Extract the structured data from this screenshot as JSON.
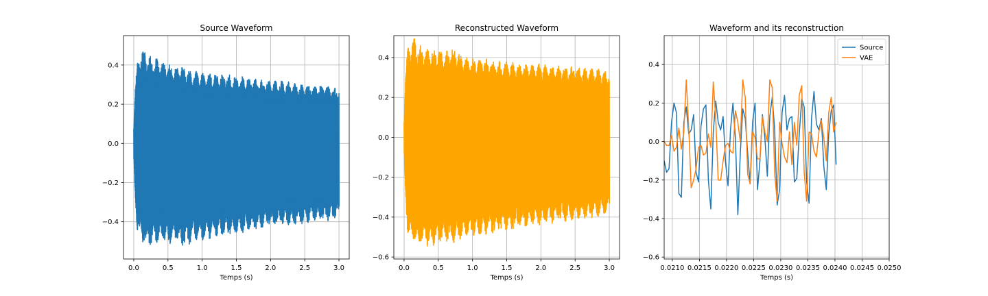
{
  "chart_data": [
    {
      "type": "line",
      "title": "Source Waveform",
      "xlabel": "Temps (s)",
      "ylabel": "",
      "xlim": [
        -0.15,
        3.15
      ],
      "ylim": [
        -0.59,
        0.55
      ],
      "xticks": [
        0.0,
        0.5,
        1.0,
        1.5,
        2.0,
        2.5,
        3.0
      ],
      "xtick_labels": [
        "0.0",
        "0.5",
        "1.0",
        "1.5",
        "2.0",
        "2.5",
        "3.0"
      ],
      "yticks": [
        -0.4,
        -0.2,
        0.0,
        0.2,
        0.4
      ],
      "ytick_labels": [
        "−0.4",
        "−0.2",
        "0.0",
        "0.2",
        "0.4"
      ],
      "grid": true,
      "legend": null,
      "series": [
        {
          "color": "#1f77b4",
          "envelope": {
            "t": [
              0.0,
              0.02,
              0.05,
              0.1,
              0.15,
              0.2,
              0.3,
              0.4,
              0.5,
              0.6,
              0.7,
              0.8,
              0.9,
              1.0,
              1.2,
              1.4,
              1.6,
              1.8,
              2.0,
              2.2,
              2.4,
              2.6,
              2.8,
              3.0
            ],
            "max": [
              0.1,
              0.28,
              0.42,
              0.47,
              0.49,
              0.45,
              0.44,
              0.42,
              0.41,
              0.39,
              0.4,
              0.38,
              0.37,
              0.36,
              0.36,
              0.35,
              0.34,
              0.33,
              0.32,
              0.32,
              0.31,
              0.3,
              0.3,
              0.28
            ],
            "min": [
              -0.1,
              -0.3,
              -0.46,
              -0.5,
              -0.52,
              -0.53,
              -0.51,
              -0.5,
              -0.52,
              -0.5,
              -0.53,
              -0.52,
              -0.49,
              -0.5,
              -0.48,
              -0.47,
              -0.46,
              -0.44,
              -0.43,
              -0.42,
              -0.42,
              -0.4,
              -0.4,
              -0.38
            ]
          }
        }
      ]
    },
    {
      "type": "line",
      "title": "Reconstructed Waveform",
      "xlabel": "Temps (s)",
      "ylabel": "",
      "xlim": [
        -0.15,
        3.15
      ],
      "ylim": [
        -0.61,
        0.51
      ],
      "xticks": [
        0.0,
        0.5,
        1.0,
        1.5,
        2.0,
        2.5,
        3.0
      ],
      "xtick_labels": [
        "0.0",
        "0.5",
        "1.0",
        "1.5",
        "2.0",
        "2.5",
        "3.0"
      ],
      "yticks": [
        -0.6,
        -0.4,
        -0.2,
        0.0,
        0.2,
        0.4
      ],
      "ytick_labels": [
        "−0.6",
        "−0.4",
        "−0.2",
        "0.0",
        "0.2",
        "0.4"
      ],
      "grid": true,
      "legend": null,
      "series": [
        {
          "color": "#ffa500",
          "envelope": {
            "t": [
              0.0,
              0.02,
              0.05,
              0.1,
              0.15,
              0.2,
              0.3,
              0.4,
              0.5,
              0.6,
              0.7,
              0.8,
              0.9,
              1.0,
              1.2,
              1.4,
              1.6,
              1.8,
              2.0,
              2.2,
              2.4,
              2.6,
              2.8,
              3.0
            ],
            "max": [
              0.1,
              0.3,
              0.45,
              0.48,
              0.5,
              0.47,
              0.45,
              0.44,
              0.44,
              0.43,
              0.46,
              0.43,
              0.4,
              0.4,
              0.4,
              0.38,
              0.38,
              0.37,
              0.37,
              0.36,
              0.36,
              0.35,
              0.35,
              0.33
            ],
            "min": [
              -0.1,
              -0.32,
              -0.48,
              -0.52,
              -0.53,
              -0.55,
              -0.55,
              -0.55,
              -0.54,
              -0.52,
              -0.54,
              -0.52,
              -0.51,
              -0.5,
              -0.49,
              -0.48,
              -0.47,
              -0.45,
              -0.44,
              -0.43,
              -0.42,
              -0.41,
              -0.4,
              -0.38
            ]
          }
        }
      ]
    },
    {
      "type": "line",
      "title": "Waveform and its reconstruction",
      "xlabel": "Temps (s)",
      "ylabel": "",
      "xlim": [
        0.02085,
        0.025
      ],
      "ylim": [
        -0.61,
        0.55
      ],
      "xticks": [
        0.021,
        0.0215,
        0.022,
        0.0225,
        0.023,
        0.0235,
        0.024,
        0.0245,
        0.025
      ],
      "xtick_labels": [
        "0.0210",
        "0.0215",
        "0.0220",
        "0.0225",
        "0.0230",
        "0.0235",
        "0.0240",
        "0.0245",
        "0.0250"
      ],
      "yticks": [
        -0.6,
        -0.4,
        -0.2,
        0.0,
        0.2,
        0.4
      ],
      "ytick_labels": [
        "−0.6",
        "−0.4",
        "−0.2",
        "0.0",
        "0.2",
        "0.4"
      ],
      "grid": true,
      "legend": {
        "position": "upper-right",
        "entries": [
          "Source",
          "VAE"
        ]
      },
      "x_start": 0.02085,
      "x_step": 4.53e-05,
      "series": [
        {
          "name": "Source",
          "color": "#1f77b4",
          "values": [
            -0.1,
            -0.16,
            -0.14,
            0.1,
            0.2,
            0.15,
            -0.27,
            -0.29,
            0.1,
            0.18,
            0.04,
            0.06,
            0.14,
            -0.16,
            -0.21,
            0.08,
            0.17,
            0.19,
            -0.2,
            -0.35,
            0.05,
            0.21,
            0.1,
            0.06,
            0.13,
            -0.11,
            -0.23,
            0.06,
            0.2,
            0.02,
            -0.38,
            -0.06,
            0.17,
            0.12,
            -0.06,
            -0.22,
            0.1,
            0.2,
            -0.25,
            -0.1,
            0.14,
            0.02,
            -0.18,
            0.13,
            0.23,
            0.06,
            -0.33,
            -0.25,
            0.15,
            0.24,
            0.06,
            0.12,
            0.13,
            -0.21,
            -0.19,
            0.04,
            0.22,
            0.18,
            -0.21,
            -0.32,
            0.12,
            0.26,
            0.09,
            0.06,
            0.12,
            -0.13,
            -0.25,
            0.04,
            0.16,
            0.19,
            -0.12
          ]
        },
        {
          "name": "VAE",
          "color": "#ff7f0e",
          "values": [
            0.0,
            -0.02,
            -0.02,
            0.03,
            -0.05,
            -0.03,
            0.07,
            -0.04,
            0.05,
            0.32,
            0.07,
            -0.24,
            -0.2,
            -0.14,
            -0.03,
            -0.02,
            -0.07,
            -0.06,
            0.04,
            -0.03,
            0.31,
            0.12,
            -0.2,
            -0.2,
            -0.1,
            -0.02,
            -0.01,
            -0.05,
            -0.06,
            0.16,
            0.1,
            0.0,
            0.32,
            0.23,
            -0.17,
            -0.22,
            0.05,
            0.02,
            -0.09,
            -0.09,
            0.13,
            0.05,
            0.0,
            0.32,
            0.28,
            -0.17,
            -0.31,
            0.1,
            -0.01,
            -0.08,
            -0.11,
            0.05,
            -0.12,
            0.1,
            -0.02,
            0.24,
            0.29,
            -0.16,
            -0.31,
            0.05,
            0.04,
            -0.05,
            -0.08,
            0.05,
            0.11,
            0.02,
            -0.1,
            0.15,
            0.23,
            0.05,
            0.1
          ]
        }
      ]
    }
  ]
}
